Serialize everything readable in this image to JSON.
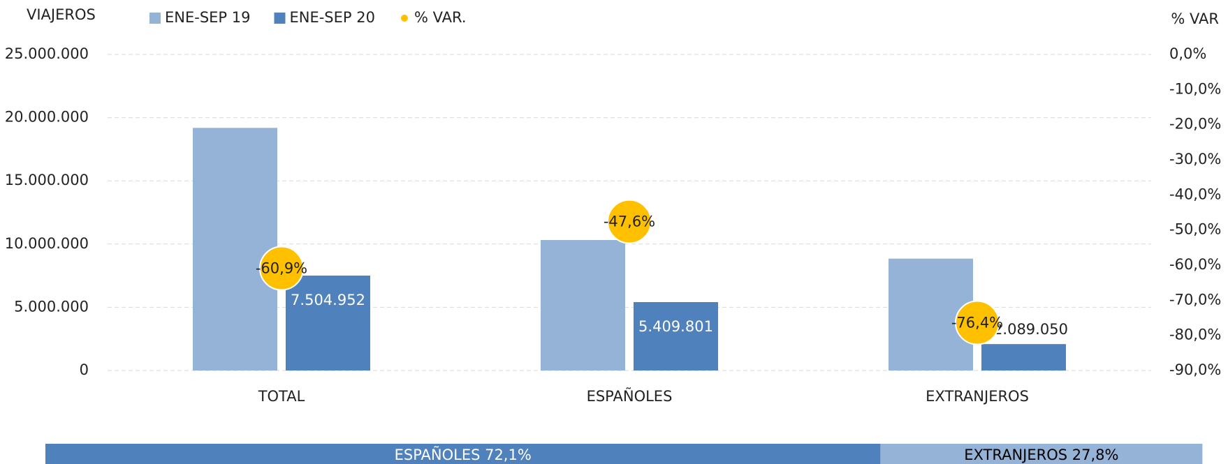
{
  "chart_data": {
    "type": "bar",
    "y_label": "VIAJEROS",
    "y2_label": "% VAR",
    "categories": [
      "TOTAL",
      "ESPAÑOLES",
      "EXTRANJEROS"
    ],
    "series": [
      {
        "name": "ENE-SEP 19",
        "color": "#95b3d7",
        "values": [
          19190000,
          10320000,
          8850000
        ]
      },
      {
        "name": "ENE-SEP 20",
        "color": "#4f81bd",
        "values": [
          7504952,
          5409801,
          2089050
        ],
        "value_labels": [
          "7.504.952",
          "5.409.801",
          "2.089.050"
        ]
      },
      {
        "name": "% VAR.",
        "color": "#ffc000",
        "axis": "y2",
        "type": "scatter",
        "values": [
          -60.9,
          -47.6,
          -76.4
        ],
        "value_labels": [
          "-60,9%",
          "-47,6%",
          "-76,4%"
        ]
      }
    ],
    "ylim": [
      0,
      25000000
    ],
    "yticks": [
      0,
      {
        "value": 5000000,
        "label": "5.000.000"
      },
      {
        "value": 10000000,
        "label": "10.000.000"
      },
      {
        "value": 15000000,
        "label": "15.000.000"
      },
      {
        "value": 20000000,
        "label": "20.000.000"
      },
      {
        "value": 25000000,
        "label": "25.000.000"
      }
    ],
    "y2lim": [
      -90,
      0
    ],
    "y2ticks": [
      {
        "value": 0,
        "label": "0,0%"
      },
      {
        "value": -10,
        "label": "-10,0%"
      },
      {
        "value": -20,
        "label": "-20,0%"
      },
      {
        "value": -30,
        "label": "-30,0%"
      },
      {
        "value": -40,
        "label": "-40,0%"
      },
      {
        "value": -50,
        "label": "-50,0%"
      },
      {
        "value": -60,
        "label": "-60,0%"
      },
      {
        "value": -70,
        "label": "-70,0%"
      },
      {
        "value": -80,
        "label": "-80,0%"
      },
      {
        "value": -90,
        "label": "-90,0%"
      }
    ],
    "grid": true,
    "share": [
      {
        "label": "ESPAÑOLES 72,1%",
        "value": 72.1,
        "color": "#4f81bd",
        "text_color": "#ffffff"
      },
      {
        "label": "EXTRANJEROS 27,8%",
        "value": 27.8,
        "color": "#95b3d7",
        "text_color": "#000000"
      }
    ]
  }
}
